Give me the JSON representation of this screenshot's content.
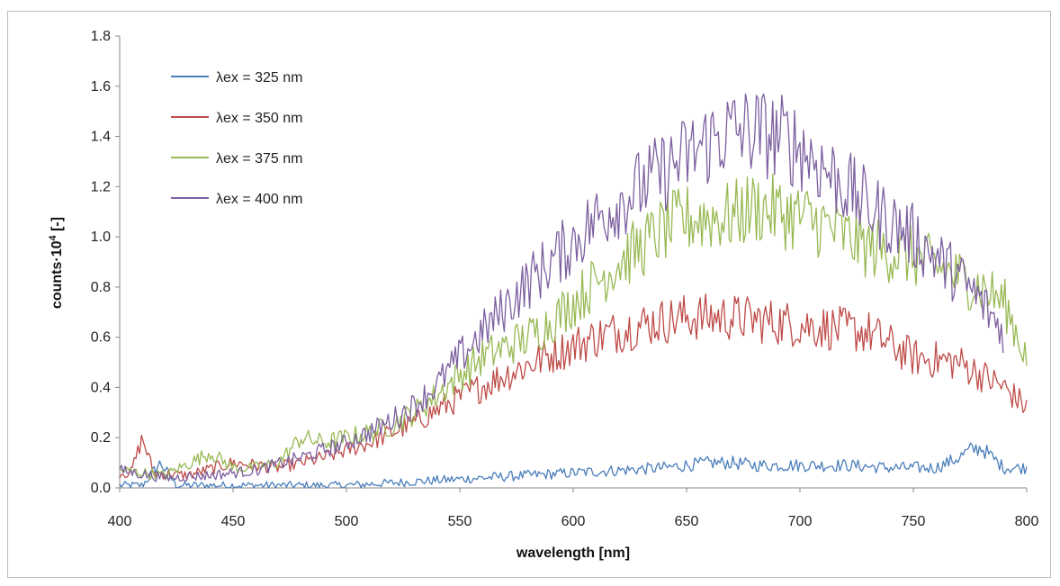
{
  "chart_data": {
    "type": "line",
    "title": "",
    "xlabel": "wavelength [nm]",
    "ylabel_main": "counts·10",
    "ylabel_sup": "4",
    "ylabel_tail": " [-]",
    "xlim": [
      400,
      800
    ],
    "ylim": [
      0,
      1.8
    ],
    "xticks": [
      "400",
      "450",
      "500",
      "550",
      "600",
      "650",
      "700",
      "750",
      "800"
    ],
    "yticks": [
      "0.0",
      "0.2",
      "0.4",
      "0.6",
      "0.8",
      "1.0",
      "1.2",
      "1.4",
      "1.6",
      "1.8"
    ],
    "grid": false,
    "legend_position": "top-left",
    "series": [
      {
        "name": "λex = 325 nm",
        "color": "#4a7ebb",
        "x": [
          400,
          410,
          418,
          425,
          440,
          460,
          480,
          500,
          520,
          540,
          560,
          580,
          600,
          620,
          640,
          650,
          660,
          670,
          680,
          700,
          720,
          740,
          760,
          770,
          775,
          780,
          790,
          800
        ],
        "y": [
          0.01,
          0.01,
          0.1,
          0.01,
          0.01,
          0.01,
          0.01,
          0.01,
          0.02,
          0.03,
          0.04,
          0.05,
          0.06,
          0.07,
          0.08,
          0.09,
          0.1,
          0.1,
          0.09,
          0.09,
          0.09,
          0.08,
          0.08,
          0.12,
          0.15,
          0.16,
          0.08,
          0.08
        ]
      },
      {
        "name": "λex = 350 nm",
        "color": "#be4b48",
        "x": [
          400,
          405,
          410,
          415,
          430,
          450,
          470,
          490,
          510,
          530,
          550,
          570,
          590,
          610,
          630,
          650,
          670,
          690,
          710,
          730,
          750,
          770,
          790,
          800
        ],
        "y": [
          0.06,
          0.06,
          0.2,
          0.06,
          0.05,
          0.1,
          0.08,
          0.12,
          0.18,
          0.26,
          0.36,
          0.45,
          0.53,
          0.6,
          0.65,
          0.68,
          0.68,
          0.66,
          0.64,
          0.62,
          0.52,
          0.5,
          0.4,
          0.32
        ]
      },
      {
        "name": "λex = 375 nm",
        "color": "#98b954",
        "x": [
          400,
          420,
          440,
          450,
          460,
          470,
          480,
          490,
          500,
          510,
          520,
          530,
          540,
          550,
          560,
          570,
          580,
          590,
          600,
          610,
          620,
          630,
          640,
          650,
          660,
          670,
          680,
          690,
          700,
          710,
          720,
          730,
          740,
          750,
          760,
          770,
          780,
          790,
          800
        ],
        "y": [
          0.07,
          0.05,
          0.14,
          0.08,
          0.08,
          0.1,
          0.2,
          0.18,
          0.2,
          0.22,
          0.25,
          0.3,
          0.37,
          0.45,
          0.52,
          0.56,
          0.6,
          0.66,
          0.74,
          0.82,
          0.9,
          0.96,
          1.03,
          1.07,
          1.08,
          1.08,
          1.12,
          1.1,
          1.08,
          1.05,
          1.0,
          0.96,
          0.94,
          0.92,
          0.88,
          0.84,
          0.8,
          0.74,
          0.52
        ]
      },
      {
        "name": "λex = 400 nm",
        "color": "#7d60a0",
        "x": [
          400,
          420,
          440,
          460,
          480,
          500,
          510,
          520,
          530,
          540,
          550,
          560,
          570,
          580,
          590,
          600,
          610,
          620,
          630,
          640,
          650,
          660,
          670,
          680,
          690,
          700,
          710,
          720,
          730,
          740,
          750,
          760,
          770,
          780,
          790
        ],
        "y": [
          0.07,
          0.04,
          0.05,
          0.07,
          0.12,
          0.18,
          0.22,
          0.27,
          0.33,
          0.41,
          0.52,
          0.62,
          0.72,
          0.82,
          0.9,
          0.98,
          1.07,
          1.14,
          1.2,
          1.26,
          1.32,
          1.38,
          1.42,
          1.42,
          1.4,
          1.36,
          1.28,
          1.2,
          1.12,
          1.06,
          1.0,
          0.92,
          0.84,
          0.74,
          0.62
        ]
      }
    ]
  }
}
